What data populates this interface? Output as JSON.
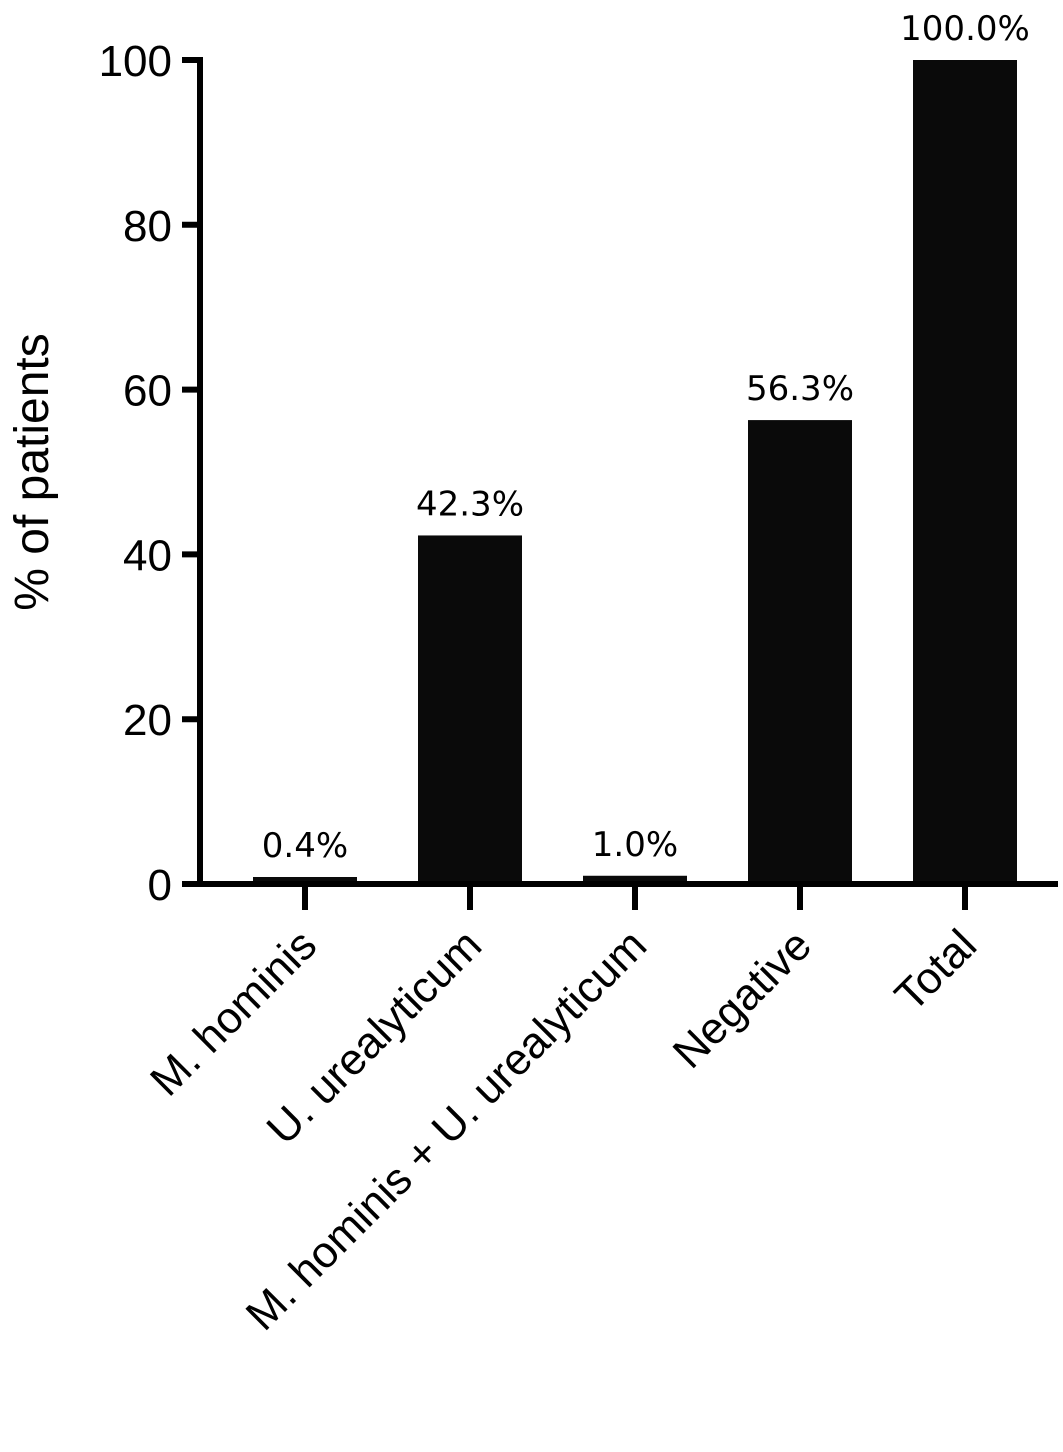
{
  "chart_data": {
    "type": "bar",
    "categories": [
      "M. hominis",
      "U. urealyticum",
      "M. hominis + U. urealyticum",
      "Negative",
      "Total"
    ],
    "values": [
      0.4,
      42.3,
      1.0,
      56.3,
      100.0
    ],
    "data_labels": [
      "0.4%",
      "42.3%",
      "1.0%",
      "56.3%",
      "100.0%"
    ],
    "title": "",
    "xlabel": "",
    "ylabel": "% of patients",
    "ylim": [
      0,
      100
    ],
    "yticks": [
      0,
      20,
      40,
      60,
      80,
      100
    ],
    "grid": false,
    "legend": "none",
    "bar_color": "#0a0a0a",
    "axis_color": "#000000"
  }
}
